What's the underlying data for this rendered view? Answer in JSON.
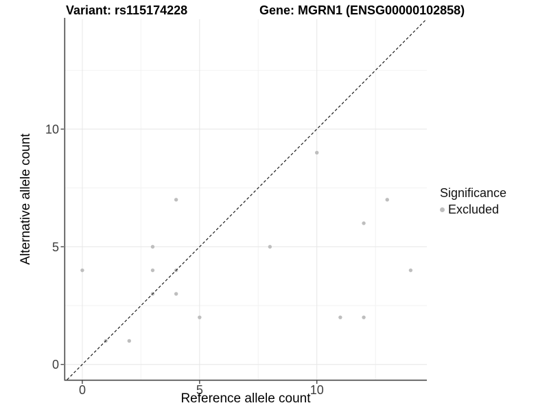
{
  "titles": {
    "left": "Variant: rs115174228",
    "right": "Gene: MGRN1 (ENSG00000102858)"
  },
  "chart_data": {
    "type": "scatter",
    "title_left": "Variant: rs115174228",
    "title_right": "Gene: MGRN1 (ENSG00000102858)",
    "xlabel": "Reference allele count",
    "ylabel": "Alternative allele count",
    "xlim": [
      -0.73,
      14.69
    ],
    "ylim": [
      -0.65,
      14.67
    ],
    "x_major_ticks": [
      0,
      5,
      10
    ],
    "y_major_ticks": [
      0,
      5,
      10
    ],
    "x_minor_ticks": [
      2.5,
      7.5,
      12.5
    ],
    "y_minor_ticks": [
      2.5,
      7.5,
      12.5
    ],
    "grid": true,
    "points": [
      [
        0,
        4
      ],
      [
        1,
        1
      ],
      [
        2,
        1
      ],
      [
        3,
        3
      ],
      [
        3,
        4
      ],
      [
        3,
        5
      ],
      [
        4,
        3
      ],
      [
        4,
        4
      ],
      [
        4,
        7
      ],
      [
        5,
        2
      ],
      [
        8,
        5
      ],
      [
        10,
        9
      ],
      [
        11,
        2
      ],
      [
        12,
        2
      ],
      [
        12,
        6
      ],
      [
        13,
        7
      ],
      [
        14,
        4
      ]
    ],
    "identity_line": {
      "style": "dashed",
      "from": -0.65,
      "to": 14.67
    },
    "legend": {
      "position": "right",
      "title": "Significance",
      "items": [
        {
          "label": "Excluded",
          "color": "#BEBEBE"
        }
      ]
    },
    "colors": {
      "point": "#BEBEBE",
      "line": "#1A1A1A",
      "grid_major": "#E6E6E6",
      "grid_minor": "#F2F2F2",
      "axis": "#474747",
      "tick_text": "#3D3D3D"
    }
  }
}
